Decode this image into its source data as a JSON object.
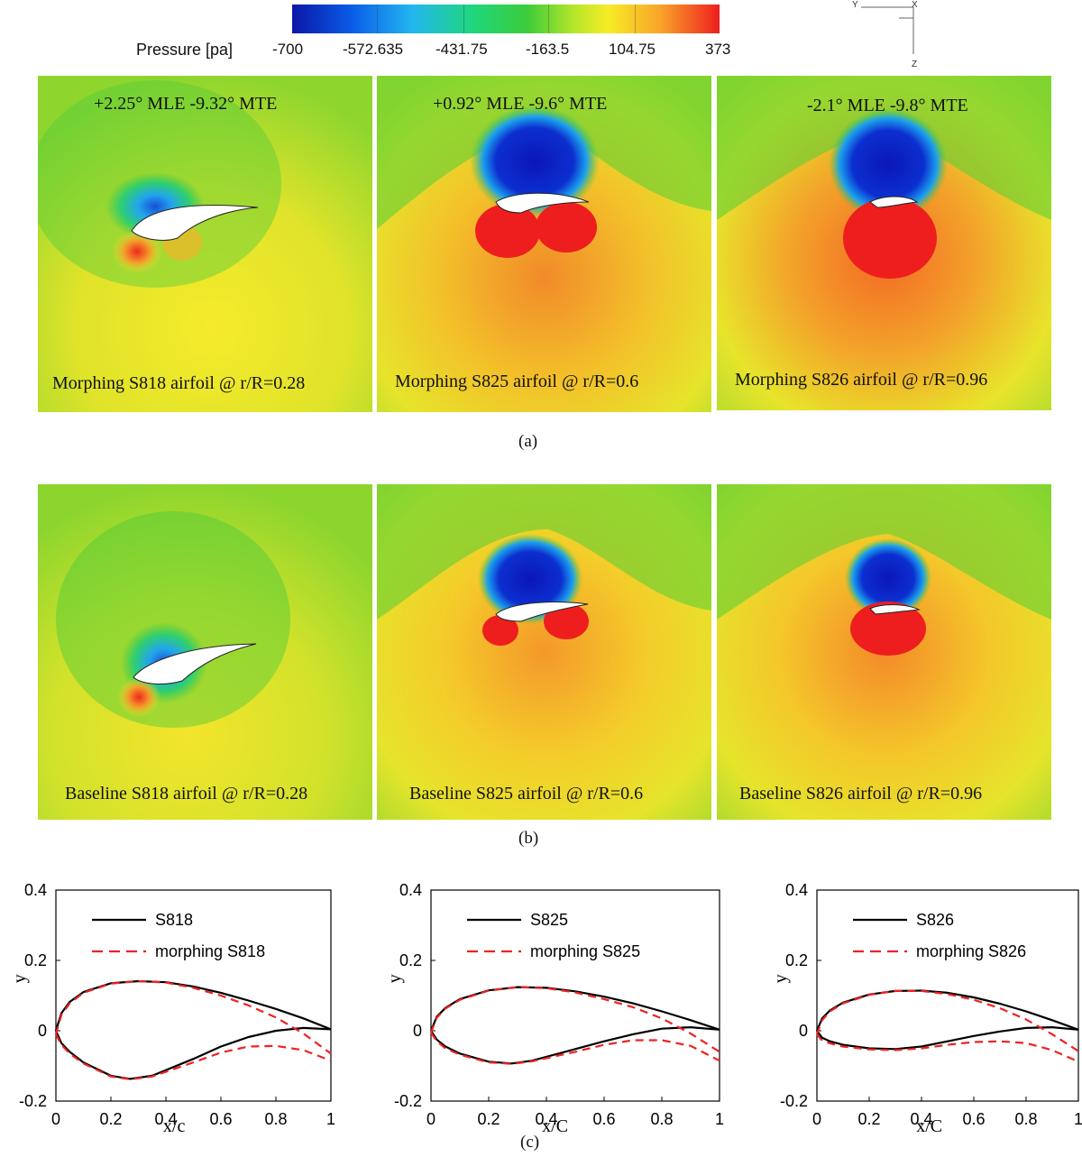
{
  "colorbar": {
    "title": "Pressure [pa]",
    "labels": [
      "-700",
      "-572.635",
      "-431.75",
      "-163.5",
      "104.75",
      "373"
    ],
    "colors": [
      "#0b16a8",
      "#0a5ce8",
      "#22b6f0",
      "#1fd67e",
      "#3ccc3a",
      "#b6e629",
      "#f7ec26",
      "#f9a52a",
      "#ee1e1e"
    ]
  },
  "triad": {
    "y": "Y",
    "x": "X",
    "z": "Z"
  },
  "morphing": [
    {
      "label": "Morphing S818 airfoil @ r/R=0.28",
      "angles": "+2.25° MLE   -9.32° MTE"
    },
    {
      "label": "Morphing S825 airfoil @ r/R=0.6",
      "angles": "+0.92° MLE   -9.6° MTE"
    },
    {
      "label": "Morphing S826 airfoil @ r/R=0.96",
      "angles": "-2.1° MLE   -9.8° MTE"
    }
  ],
  "baseline": [
    {
      "label": "Baseline S818 airfoil @ r/R=0.28"
    },
    {
      "label": "Baseline S825 airfoil @ r/R=0.6"
    },
    {
      "label": "Baseline S826 airfoil @ r/R=0.96"
    }
  ],
  "captions": {
    "a": "(a)",
    "b": "(b)",
    "c": "(c)"
  },
  "chart_data": [
    {
      "type": "line",
      "title": "",
      "xlabel": "x/c",
      "ylabel": "y",
      "xlim": [
        0,
        1
      ],
      "ylim": [
        -0.2,
        0.4
      ],
      "xticks": [
        "0",
        "0.2",
        "0.4",
        "0.6",
        "0.8",
        "1"
      ],
      "yticks": [
        "-0.2",
        "0",
        "0.2",
        "0.4"
      ],
      "series": [
        {
          "name": "S818",
          "style": "solid",
          "color": "#000000",
          "upper": [
            [
              0,
              0
            ],
            [
              0.02,
              0.05
            ],
            [
              0.05,
              0.082
            ],
            [
              0.1,
              0.11
            ],
            [
              0.2,
              0.135
            ],
            [
              0.3,
              0.141
            ],
            [
              0.4,
              0.138
            ],
            [
              0.5,
              0.126
            ],
            [
              0.6,
              0.108
            ],
            [
              0.7,
              0.086
            ],
            [
              0.8,
              0.062
            ],
            [
              0.9,
              0.035
            ],
            [
              1.0,
              0.004
            ]
          ],
          "lower": [
            [
              0,
              0
            ],
            [
              0.02,
              -0.035
            ],
            [
              0.05,
              -0.06
            ],
            [
              0.1,
              -0.09
            ],
            [
              0.2,
              -0.128
            ],
            [
              0.27,
              -0.137
            ],
            [
              0.35,
              -0.128
            ],
            [
              0.5,
              -0.08
            ],
            [
              0.6,
              -0.045
            ],
            [
              0.7,
              -0.018
            ],
            [
              0.8,
              0.0
            ],
            [
              0.9,
              0.008
            ],
            [
              1.0,
              0.004
            ]
          ]
        },
        {
          "name": "morphing S818",
          "style": "dashed",
          "color": "#ee2222",
          "upper": [
            [
              0,
              -0.01
            ],
            [
              0.02,
              0.045
            ],
            [
              0.05,
              0.078
            ],
            [
              0.1,
              0.108
            ],
            [
              0.2,
              0.134
            ],
            [
              0.3,
              0.141
            ],
            [
              0.4,
              0.137
            ],
            [
              0.5,
              0.122
            ],
            [
              0.6,
              0.1
            ],
            [
              0.7,
              0.072
            ],
            [
              0.8,
              0.038
            ],
            [
              0.9,
              -0.008
            ],
            [
              1.0,
              -0.065
            ]
          ],
          "lower": [
            [
              0,
              -0.01
            ],
            [
              0.02,
              -0.04
            ],
            [
              0.05,
              -0.065
            ],
            [
              0.1,
              -0.093
            ],
            [
              0.2,
              -0.13
            ],
            [
              0.27,
              -0.138
            ],
            [
              0.35,
              -0.13
            ],
            [
              0.5,
              -0.09
            ],
            [
              0.6,
              -0.062
            ],
            [
              0.7,
              -0.045
            ],
            [
              0.8,
              -0.043
            ],
            [
              0.9,
              -0.055
            ],
            [
              1.0,
              -0.085
            ]
          ]
        }
      ],
      "legend": "top-left"
    },
    {
      "type": "line",
      "title": "",
      "xlabel": "x/C",
      "ylabel": "y",
      "xlim": [
        0,
        1
      ],
      "ylim": [
        -0.2,
        0.4
      ],
      "xticks": [
        "0",
        "0.2",
        "0.4",
        "0.6",
        "0.8",
        "1"
      ],
      "yticks": [
        "-0.2",
        "0",
        "0.2",
        "0.4"
      ],
      "series": [
        {
          "name": "S825",
          "style": "solid",
          "color": "#000000",
          "upper": [
            [
              0,
              0
            ],
            [
              0.02,
              0.04
            ],
            [
              0.05,
              0.065
            ],
            [
              0.1,
              0.09
            ],
            [
              0.2,
              0.115
            ],
            [
              0.3,
              0.124
            ],
            [
              0.4,
              0.122
            ],
            [
              0.5,
              0.112
            ],
            [
              0.6,
              0.097
            ],
            [
              0.7,
              0.078
            ],
            [
              0.8,
              0.055
            ],
            [
              0.9,
              0.03
            ],
            [
              1.0,
              0.003
            ]
          ],
          "lower": [
            [
              0,
              0
            ],
            [
              0.02,
              -0.025
            ],
            [
              0.05,
              -0.045
            ],
            [
              0.1,
              -0.065
            ],
            [
              0.2,
              -0.088
            ],
            [
              0.28,
              -0.093
            ],
            [
              0.35,
              -0.085
            ],
            [
              0.5,
              -0.052
            ],
            [
              0.6,
              -0.03
            ],
            [
              0.7,
              -0.01
            ],
            [
              0.8,
              0.006
            ],
            [
              0.9,
              0.01
            ],
            [
              1.0,
              0.003
            ]
          ]
        },
        {
          "name": "morphing S825",
          "style": "dashed",
          "color": "#ee2222",
          "upper": [
            [
              0,
              -0.005
            ],
            [
              0.02,
              0.037
            ],
            [
              0.05,
              0.063
            ],
            [
              0.1,
              0.088
            ],
            [
              0.2,
              0.114
            ],
            [
              0.3,
              0.124
            ],
            [
              0.4,
              0.121
            ],
            [
              0.5,
              0.109
            ],
            [
              0.6,
              0.09
            ],
            [
              0.7,
              0.067
            ],
            [
              0.8,
              0.035
            ],
            [
              0.9,
              -0.008
            ],
            [
              1.0,
              -0.06
            ]
          ],
          "lower": [
            [
              0,
              -0.005
            ],
            [
              0.02,
              -0.03
            ],
            [
              0.05,
              -0.05
            ],
            [
              0.1,
              -0.068
            ],
            [
              0.2,
              -0.09
            ],
            [
              0.28,
              -0.094
            ],
            [
              0.35,
              -0.087
            ],
            [
              0.5,
              -0.06
            ],
            [
              0.6,
              -0.04
            ],
            [
              0.7,
              -0.027
            ],
            [
              0.8,
              -0.027
            ],
            [
              0.9,
              -0.043
            ],
            [
              1.0,
              -0.085
            ]
          ]
        }
      ],
      "legend": "top-left"
    },
    {
      "type": "line",
      "title": "",
      "xlabel": "x/C",
      "ylabel": "y",
      "xlim": [
        0,
        1
      ],
      "ylim": [
        -0.2,
        0.4
      ],
      "xticks": [
        "0",
        "0.2",
        "0.4",
        "0.6",
        "0.8",
        "1"
      ],
      "yticks": [
        "-0.2",
        "0",
        "0.2",
        "0.4"
      ],
      "series": [
        {
          "name": "S826",
          "style": "solid",
          "color": "#000000",
          "upper": [
            [
              0,
              0
            ],
            [
              0.02,
              0.035
            ],
            [
              0.05,
              0.058
            ],
            [
              0.1,
              0.08
            ],
            [
              0.2,
              0.103
            ],
            [
              0.3,
              0.113
            ],
            [
              0.4,
              0.114
            ],
            [
              0.5,
              0.108
            ],
            [
              0.6,
              0.095
            ],
            [
              0.7,
              0.077
            ],
            [
              0.8,
              0.055
            ],
            [
              0.9,
              0.03
            ],
            [
              1.0,
              0.003
            ]
          ],
          "lower": [
            [
              0,
              0
            ],
            [
              0.02,
              -0.02
            ],
            [
              0.05,
              -0.03
            ],
            [
              0.1,
              -0.04
            ],
            [
              0.2,
              -0.05
            ],
            [
              0.3,
              -0.052
            ],
            [
              0.4,
              -0.045
            ],
            [
              0.5,
              -0.03
            ],
            [
              0.6,
              -0.015
            ],
            [
              0.7,
              -0.002
            ],
            [
              0.8,
              0.008
            ],
            [
              0.9,
              0.01
            ],
            [
              1.0,
              0.003
            ]
          ]
        },
        {
          "name": "morphing S826",
          "style": "dashed",
          "color": "#ee2222",
          "upper": [
            [
              0,
              -0.01
            ],
            [
              0.02,
              0.03
            ],
            [
              0.05,
              0.055
            ],
            [
              0.1,
              0.078
            ],
            [
              0.2,
              0.102
            ],
            [
              0.3,
              0.113
            ],
            [
              0.4,
              0.113
            ],
            [
              0.5,
              0.104
            ],
            [
              0.6,
              0.088
            ],
            [
              0.7,
              0.064
            ],
            [
              0.8,
              0.032
            ],
            [
              0.9,
              -0.01
            ],
            [
              1.0,
              -0.058
            ]
          ],
          "lower": [
            [
              0,
              -0.01
            ],
            [
              0.02,
              -0.028
            ],
            [
              0.05,
              -0.036
            ],
            [
              0.1,
              -0.045
            ],
            [
              0.2,
              -0.053
            ],
            [
              0.3,
              -0.055
            ],
            [
              0.4,
              -0.05
            ],
            [
              0.5,
              -0.04
            ],
            [
              0.6,
              -0.032
            ],
            [
              0.7,
              -0.03
            ],
            [
              0.8,
              -0.035
            ],
            [
              0.9,
              -0.055
            ],
            [
              1.0,
              -0.088
            ]
          ]
        }
      ],
      "legend": "top-left"
    }
  ]
}
